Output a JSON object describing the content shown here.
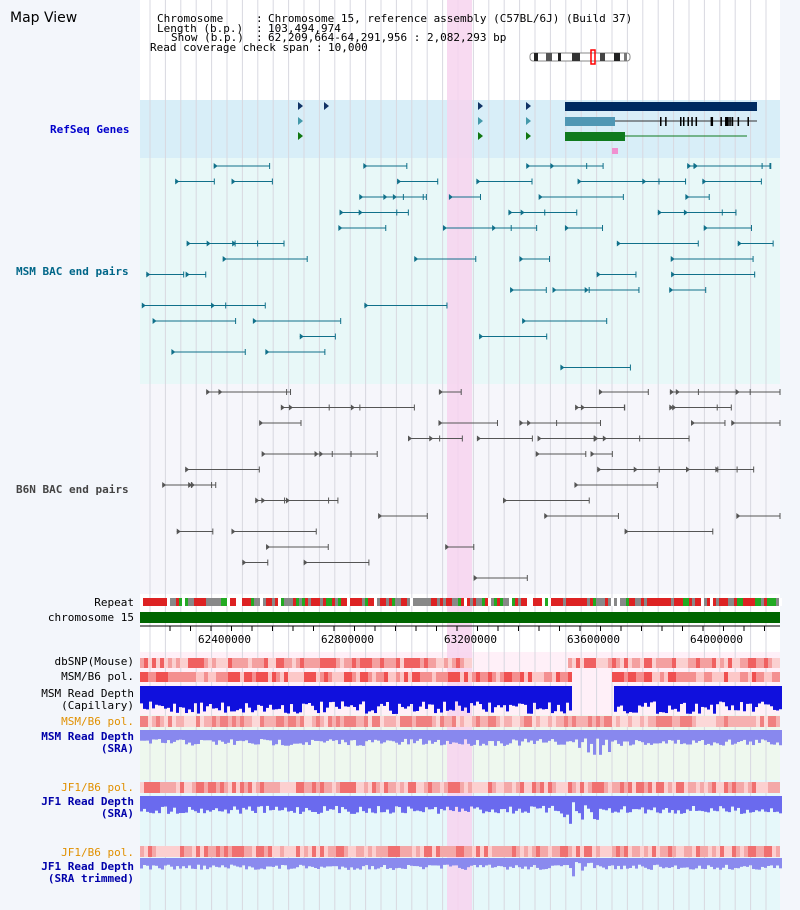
{
  "title": "Map View",
  "header": {
    "chromosome_key": "Chromosome",
    "chromosome_val": "Chromosome 15, reference assembly (C57BL/6J) (Build 37)",
    "length_key": "Length (b.p.)",
    "length_val": "103,494,974",
    "show_key": "Show (b.p.)",
    "show_val": "62,209,664-64,291,956 : 2,082,293 bp",
    "span_key": "Read coverage check span",
    "span_val": "10,000"
  },
  "tracks": {
    "refseq": "RefSeq Genes",
    "msm_bac": "MSM BAC end pairs",
    "b6n_bac": "B6N BAC end pairs",
    "repeat": "Repeat",
    "chromosome": "chromosome 15",
    "dbsnp": "dbSNP(Mouse)",
    "msm_b6_pol": "MSM/B6 pol.",
    "msm_depth_cap_1": "MSM Read Depth",
    "msm_depth_cap_2": "(Capillary)",
    "msm_b6_pol2": "MSM/B6 pol.",
    "msm_depth_sra_1": "MSM Read Depth",
    "msm_depth_sra_2": "(SRA)",
    "jf1_b6_pol": "JF1/B6 pol.",
    "jf1_depth_sra_1": "JF1 Read Depth",
    "jf1_depth_sra_2": "(SRA)",
    "jf1_b6_pol2": "JF1/B6 pol.",
    "jf1_depth_trim_1": "JF1 Read Depth",
    "jf1_depth_trim_2": "(SRA trimmed)"
  },
  "axis": {
    "ticks": [
      "62400000",
      "62800000",
      "63200000",
      "63600000",
      "64000000"
    ]
  },
  "colors": {
    "refseq_label": "#0000cc",
    "msm_label": "#006688",
    "b6n_label": "#333333",
    "orange_label": "#e09000",
    "blue_label": "#0000aa",
    "highlight": "#f8d8f0",
    "gene_dark": "#002a60",
    "gene_green": "#006600",
    "chromosome_bar": "#006600"
  }
}
